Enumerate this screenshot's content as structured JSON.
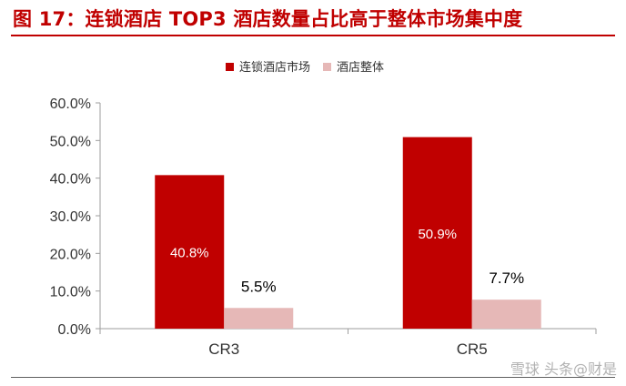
{
  "page": {
    "title": "图 17：连锁酒店 TOP3 酒店数量占比高于整体市场集中度"
  },
  "watermark": {
    "text": "雪球 头条@财是"
  },
  "colors": {
    "title": "#c00000",
    "series_1": "#c00000",
    "series_2": "#e6b8b7",
    "axis": "#9e9e9e"
  },
  "chart_data": {
    "type": "bar",
    "title": "",
    "xlabel": "",
    "ylabel": "",
    "categories": [
      "CR3",
      "CR5"
    ],
    "series": [
      {
        "name": "连锁酒店市场",
        "values": [
          40.8,
          50.9
        ],
        "labels": [
          "40.8%",
          "50.9%"
        ],
        "label_position": "inside",
        "label_color": "#ffffff"
      },
      {
        "name": "酒店整体",
        "values": [
          5.5,
          7.7
        ],
        "labels": [
          "5.5%",
          "7.7%"
        ],
        "label_position": "above",
        "label_color": "#000000"
      }
    ],
    "ylim": [
      0,
      60
    ],
    "yticks": [
      "0.0%",
      "10.0%",
      "20.0%",
      "30.0%",
      "40.0%",
      "50.0%",
      "60.0%"
    ],
    "grid": false,
    "legend": "top-center"
  }
}
